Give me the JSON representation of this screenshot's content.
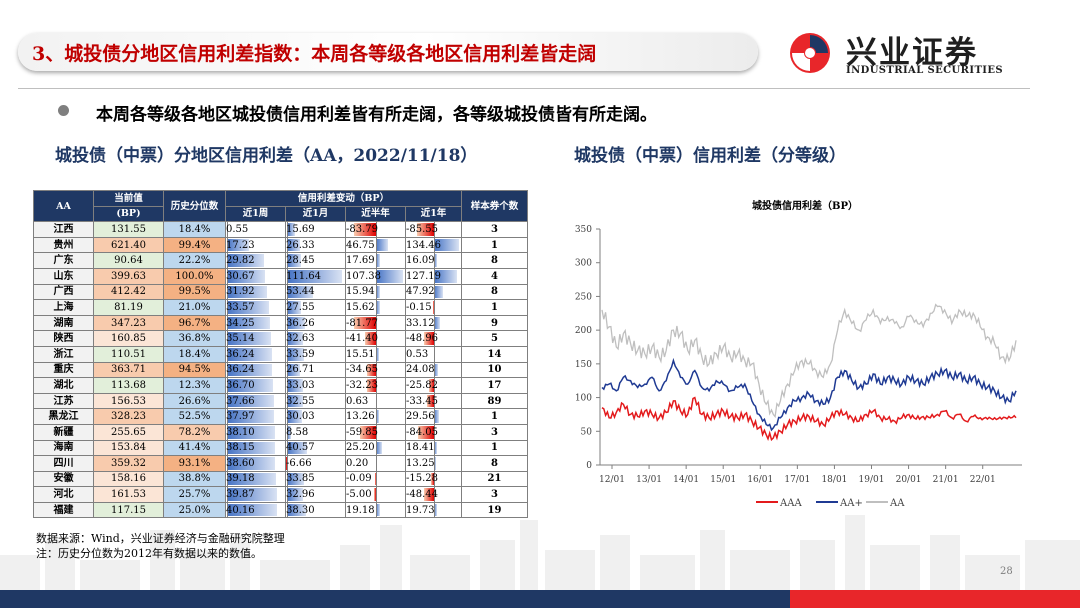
{
  "header": {
    "title": "3、城投债分地区信用利差指数：本周各等级各地区信用利差皆走阔",
    "logo_cn": "兴业证券",
    "logo_en": "INDUSTRIAL SECURITIES"
  },
  "bullet": "本周各等级各地区城投债信用利差皆有所走阔，各等级城投债皆有所走阔。",
  "left_title": "城投债（中票）分地区信用利差（AA，2022/11/18）",
  "right_title": "城投债（中票）信用利差（分等级）",
  "table": {
    "h_grade": "AA",
    "h_current": "当前值",
    "h_current_unit": "(BP)",
    "h_pct": "历史分位数",
    "h_change": "信用利差变动（BP）",
    "h_w1": "近1周",
    "h_m1": "近1月",
    "h_hy": "近半年",
    "h_y1": "近1年",
    "h_count": "样本券个数",
    "rows": [
      {
        "region": "江西",
        "cur": "131.55",
        "pct": "18.4%",
        "w1": "0.55",
        "m1": "15.69",
        "hy": "-83.79",
        "y1": "-85.55",
        "n": "3"
      },
      {
        "region": "贵州",
        "cur": "621.40",
        "pct": "99.4%",
        "w1": "17.23",
        "m1": "26.33",
        "hy": "46.75",
        "y1": "134.46",
        "n": "1"
      },
      {
        "region": "广东",
        "cur": "90.64",
        "pct": "22.2%",
        "w1": "29.82",
        "m1": "28.45",
        "hy": "17.69",
        "y1": "16.09",
        "n": "8"
      },
      {
        "region": "山东",
        "cur": "399.63",
        "pct": "100.0%",
        "w1": "30.67",
        "m1": "111.64",
        "hy": "107.38",
        "y1": "127.19",
        "n": "4"
      },
      {
        "region": "广西",
        "cur": "412.42",
        "pct": "99.5%",
        "w1": "31.92",
        "m1": "53.44",
        "hy": "15.94",
        "y1": "47.92",
        "n": "8"
      },
      {
        "region": "上海",
        "cur": "81.19",
        "pct": "21.0%",
        "w1": "33.57",
        "m1": "27.55",
        "hy": "15.62",
        "y1": "-0.15",
        "n": "1"
      },
      {
        "region": "湖南",
        "cur": "347.23",
        "pct": "96.7%",
        "w1": "34.25",
        "m1": "36.26",
        "hy": "-81.77",
        "y1": "33.12",
        "n": "9"
      },
      {
        "region": "陕西",
        "cur": "160.85",
        "pct": "36.8%",
        "w1": "35.14",
        "m1": "32.63",
        "hy": "-41.40",
        "y1": "-48.96",
        "n": "5"
      },
      {
        "region": "浙江",
        "cur": "110.51",
        "pct": "18.4%",
        "w1": "36.24",
        "m1": "33.59",
        "hy": "15.51",
        "y1": "0.53",
        "n": "14"
      },
      {
        "region": "重庆",
        "cur": "363.71",
        "pct": "94.5%",
        "w1": "36.24",
        "m1": "26.71",
        "hy": "-34.65",
        "y1": "24.08",
        "n": "10"
      },
      {
        "region": "湖北",
        "cur": "113.68",
        "pct": "12.3%",
        "w1": "36.70",
        "m1": "33.03",
        "hy": "-32.23",
        "y1": "-25.82",
        "n": "17"
      },
      {
        "region": "江苏",
        "cur": "156.53",
        "pct": "26.6%",
        "w1": "37.66",
        "m1": "32.55",
        "hy": "0.63",
        "y1": "-33.45",
        "n": "89"
      },
      {
        "region": "黑龙江",
        "cur": "328.23",
        "pct": "52.5%",
        "w1": "37.97",
        "m1": "30.03",
        "hy": "13.26",
        "y1": "29.56",
        "n": "1"
      },
      {
        "region": "新疆",
        "cur": "255.65",
        "pct": "78.2%",
        "w1": "38.10",
        "m1": "8.58",
        "hy": "-59.85",
        "y1": "-84.05",
        "n": "3"
      },
      {
        "region": "海南",
        "cur": "153.84",
        "pct": "41.4%",
        "w1": "38.15",
        "m1": "40.57",
        "hy": "25.20",
        "y1": "18.41",
        "n": "1"
      },
      {
        "region": "四川",
        "cur": "359.32",
        "pct": "93.1%",
        "w1": "38.60",
        "m1": "-6.66",
        "hy": "0.20",
        "y1": "13.25",
        "n": "8"
      },
      {
        "region": "安徽",
        "cur": "158.16",
        "pct": "38.8%",
        "w1": "39.18",
        "m1": "33.85",
        "hy": "-0.09",
        "y1": "-15.28",
        "n": "21"
      },
      {
        "region": "河北",
        "cur": "161.53",
        "pct": "25.7%",
        "w1": "39.87",
        "m1": "32.96",
        "hy": "-5.00",
        "y1": "-48.44",
        "n": "3"
      },
      {
        "region": "福建",
        "cur": "117.15",
        "pct": "25.0%",
        "w1": "40.16",
        "m1": "38.30",
        "hy": "19.18",
        "y1": "19.73",
        "n": "19"
      }
    ]
  },
  "chart_data": {
    "type": "line",
    "title": "城投债信用利差（BP）",
    "x_ticks": [
      "12/01",
      "13/01",
      "14/01",
      "15/01",
      "16/01",
      "17/01",
      "18/01",
      "19/01",
      "20/01",
      "21/01",
      "22/01"
    ],
    "ylim": [
      0,
      350
    ],
    "y_ticks": [
      0,
      50,
      100,
      150,
      200,
      250,
      300,
      350
    ],
    "legend_position": "bottom",
    "series": [
      {
        "name": "AAA",
        "color": "#e31a1c",
        "values": [
          85,
          70,
          78,
          90,
          75,
          72,
          80,
          75,
          70,
          78,
          95,
          80,
          75,
          100,
          75,
          70,
          75,
          80,
          72,
          70,
          75,
          65,
          55,
          45,
          40,
          50,
          60,
          65,
          70,
          72,
          65,
          60,
          70,
          80,
          75,
          70,
          65,
          75,
          80,
          70,
          68,
          65,
          70,
          75,
          68,
          72,
          70,
          75,
          80,
          70,
          75,
          65,
          72,
          70,
          68,
          70,
          68,
          72,
          70
        ]
      },
      {
        "name": "AA+",
        "color": "#1f3a93",
        "values": [
          115,
          120,
          110,
          130,
          125,
          115,
          120,
          130,
          110,
          125,
          155,
          130,
          120,
          140,
          115,
          110,
          125,
          120,
          110,
          115,
          120,
          95,
          75,
          60,
          55,
          70,
          85,
          95,
          100,
          105,
          95,
          90,
          100,
          130,
          140,
          125,
          115,
          120,
          135,
          120,
          130,
          125,
          120,
          130,
          125,
          120,
          130,
          135,
          140,
          130,
          135,
          125,
          130,
          120,
          115,
          110,
          100,
          95,
          110
        ]
      },
      {
        "name": "AA",
        "color": "#bfbfbf",
        "values": [
          230,
          205,
          175,
          195,
          180,
          170,
          165,
          175,
          160,
          170,
          200,
          195,
          170,
          185,
          160,
          150,
          165,
          175,
          160,
          165,
          155,
          150,
          120,
          90,
          75,
          95,
          120,
          140,
          155,
          150,
          140,
          130,
          150,
          200,
          230,
          210,
          200,
          215,
          230,
          210,
          220,
          210,
          205,
          220,
          215,
          205,
          225,
          235,
          230,
          210,
          230,
          220,
          225,
          205,
          190,
          180,
          160,
          155,
          185
        ]
      }
    ]
  },
  "footnote_source": "数据来源：Wind，兴业证券经济与金融研究院整理",
  "footnote_note": "注：历史分位数为2012年有数据以来的数值。",
  "page_number": "28",
  "colors": {
    "accent_red": "#c00000",
    "navy": "#1f3864",
    "bottom_red": "#e8262a"
  }
}
